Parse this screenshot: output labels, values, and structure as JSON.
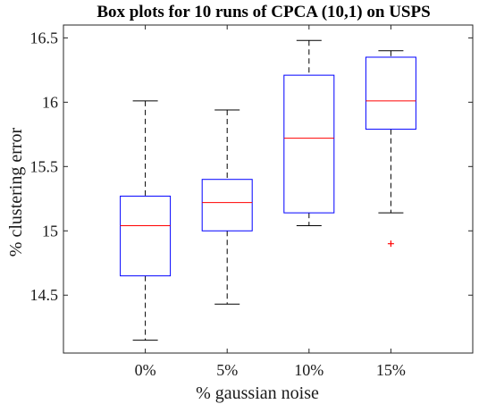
{
  "chart_data": {
    "type": "box",
    "title": "Box plots for 10 runs of CPCA (10,1) on USPS",
    "xlabel": "% gaussian noise",
    "ylabel": "% clustering error",
    "categories": [
      "0%",
      "5%",
      "10%",
      "15%"
    ],
    "ylim": [
      14.05,
      16.6
    ],
    "yticks": [
      14.5,
      15,
      15.5,
      16,
      16.5
    ],
    "ytick_labels": [
      "14.5",
      "15",
      "15.5",
      "16",
      "16.5"
    ],
    "boxes": [
      {
        "whisker_low": 14.15,
        "q1": 14.65,
        "median": 15.04,
        "q3": 15.27,
        "whisker_high": 16.01,
        "outliers": []
      },
      {
        "whisker_low": 14.43,
        "q1": 15.0,
        "median": 15.22,
        "q3": 15.4,
        "whisker_high": 15.94,
        "outliers": []
      },
      {
        "whisker_low": 15.04,
        "q1": 15.14,
        "median": 15.72,
        "q3": 16.21,
        "whisker_high": 16.48,
        "outliers": []
      },
      {
        "whisker_low": 15.14,
        "q1": 15.79,
        "median": 16.01,
        "q3": 16.35,
        "whisker_high": 16.4,
        "outliers": [
          14.9
        ]
      }
    ],
    "grid": false,
    "colors": {
      "box": "#0000ff",
      "median": "#ff0000",
      "whisker": "#000000",
      "outlier": "#ff0000",
      "axes": "#262626"
    }
  }
}
